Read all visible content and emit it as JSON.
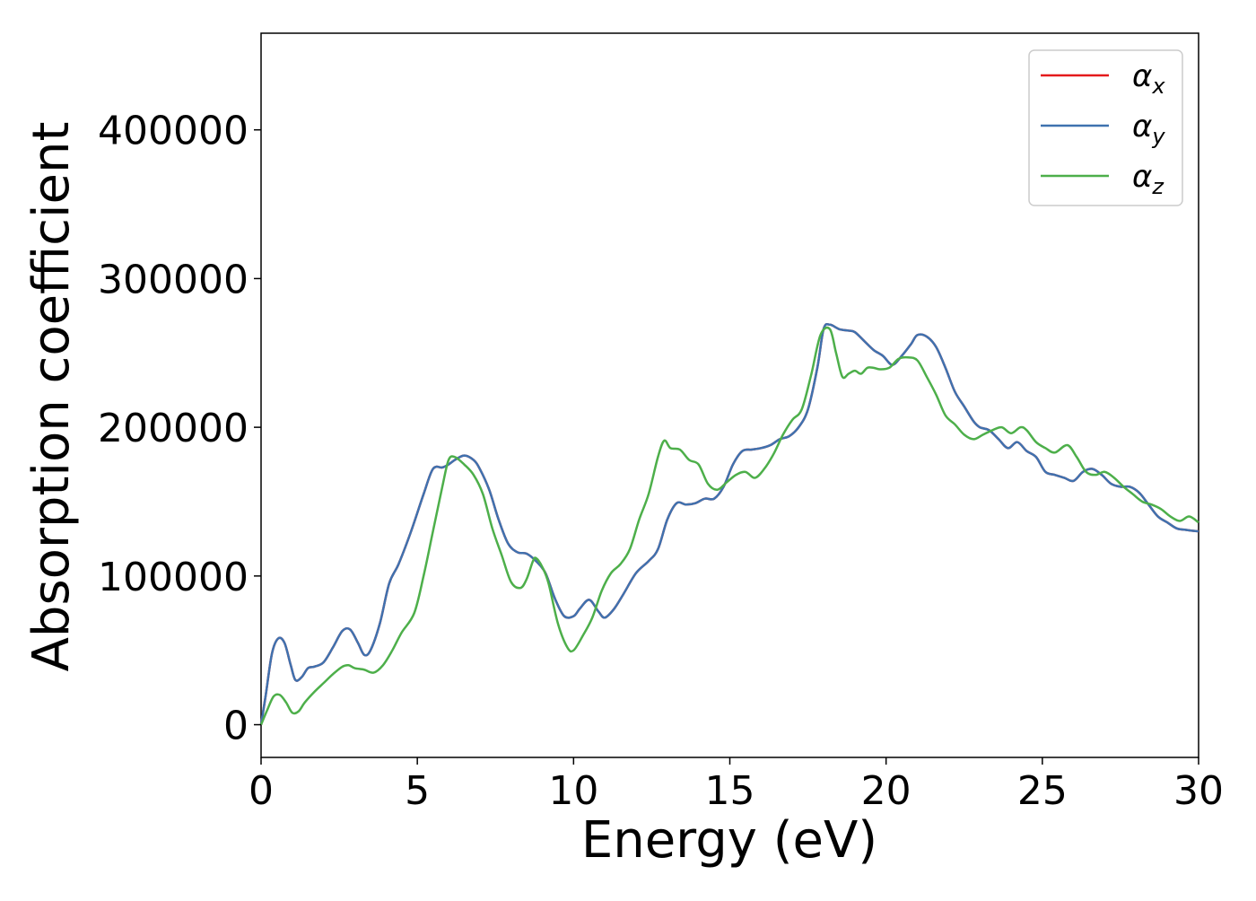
{
  "chart_data": {
    "type": "line",
    "xlabel": "Energy (eV)",
    "ylabel": "Absorption coefficient",
    "xlim": [
      0,
      30
    ],
    "ylim": [
      -22000,
      465000
    ],
    "xticks": [
      0,
      5,
      10,
      15,
      20,
      25,
      30
    ],
    "yticks": [
      0,
      100000,
      200000,
      300000,
      400000
    ],
    "grid": false,
    "legend_position": "top-right",
    "series": [
      {
        "name": "αx",
        "legend_symbol": "α",
        "legend_subscript": "x",
        "color": "#e41a1c",
        "x": [
          0,
          0.15,
          0.35,
          0.55,
          0.75,
          0.95,
          1.1,
          1.3,
          1.5,
          1.7,
          2.0,
          2.3,
          2.6,
          2.85,
          3.1,
          3.3,
          3.5,
          3.8,
          4.1,
          4.4,
          4.8,
          5.2,
          5.5,
          5.8,
          6.0,
          6.2,
          6.5,
          6.8,
          7.0,
          7.3,
          7.6,
          7.9,
          8.2,
          8.5,
          8.8,
          9.1,
          9.4,
          9.7,
          10.0,
          10.2,
          10.5,
          10.8,
          11.0,
          11.3,
          11.6,
          12.0,
          12.4,
          12.7,
          13.0,
          13.3,
          13.6,
          13.9,
          14.2,
          14.5,
          14.8,
          15.1,
          15.4,
          15.7,
          16.0,
          16.3,
          16.6,
          16.9,
          17.2,
          17.5,
          17.8,
          18.0,
          18.2,
          18.5,
          18.8,
          19.0,
          19.3,
          19.6,
          19.9,
          20.2,
          20.5,
          20.8,
          21.0,
          21.3,
          21.6,
          21.9,
          22.2,
          22.5,
          22.8,
          23.0,
          23.3,
          23.6,
          23.9,
          24.2,
          24.5,
          24.8,
          25.1,
          25.4,
          25.7,
          26.0,
          26.3,
          26.6,
          26.9,
          27.2,
          27.5,
          27.8,
          28.1,
          28.4,
          28.7,
          29.0,
          29.3,
          29.6,
          30.0
        ],
        "y": [
          0,
          20000,
          48000,
          58000,
          55000,
          40000,
          30000,
          32000,
          38000,
          39000,
          42000,
          52000,
          63000,
          64000,
          55000,
          47000,
          50000,
          68000,
          95000,
          108000,
          130000,
          155000,
          172000,
          173000,
          175000,
          178000,
          181000,
          178000,
          172000,
          158000,
          138000,
          122000,
          116000,
          115000,
          110000,
          102000,
          85000,
          73000,
          73000,
          78000,
          84000,
          76000,
          72000,
          78000,
          88000,
          102000,
          110000,
          118000,
          138000,
          149000,
          148000,
          149000,
          152000,
          152000,
          160000,
          175000,
          184000,
          185000,
          186000,
          188000,
          192000,
          194000,
          200000,
          212000,
          240000,
          266000,
          269000,
          266000,
          265000,
          264000,
          258000,
          252000,
          248000,
          242000,
          248000,
          256000,
          262000,
          261000,
          254000,
          240000,
          224000,
          214000,
          204000,
          200000,
          198000,
          192000,
          186000,
          190000,
          184000,
          180000,
          170000,
          168000,
          166000,
          164000,
          170000,
          172000,
          168000,
          162000,
          160000,
          160000,
          156000,
          148000,
          140000,
          136000,
          132000,
          131000,
          130000
        ]
      },
      {
        "name": "αy",
        "legend_symbol": "α",
        "legend_subscript": "y",
        "color": "#3f72af",
        "x": [
          0,
          0.15,
          0.35,
          0.55,
          0.75,
          0.95,
          1.1,
          1.3,
          1.5,
          1.7,
          2.0,
          2.3,
          2.6,
          2.85,
          3.1,
          3.3,
          3.5,
          3.8,
          4.1,
          4.4,
          4.8,
          5.2,
          5.5,
          5.8,
          6.0,
          6.2,
          6.5,
          6.8,
          7.0,
          7.3,
          7.6,
          7.9,
          8.2,
          8.5,
          8.8,
          9.1,
          9.4,
          9.7,
          10.0,
          10.2,
          10.5,
          10.8,
          11.0,
          11.3,
          11.6,
          12.0,
          12.4,
          12.7,
          13.0,
          13.3,
          13.6,
          13.9,
          14.2,
          14.5,
          14.8,
          15.1,
          15.4,
          15.7,
          16.0,
          16.3,
          16.6,
          16.9,
          17.2,
          17.5,
          17.8,
          18.0,
          18.2,
          18.5,
          18.8,
          19.0,
          19.3,
          19.6,
          19.9,
          20.2,
          20.5,
          20.8,
          21.0,
          21.3,
          21.6,
          21.9,
          22.2,
          22.5,
          22.8,
          23.0,
          23.3,
          23.6,
          23.9,
          24.2,
          24.5,
          24.8,
          25.1,
          25.4,
          25.7,
          26.0,
          26.3,
          26.6,
          26.9,
          27.2,
          27.5,
          27.8,
          28.1,
          28.4,
          28.7,
          29.0,
          29.3,
          29.6,
          30.0
        ],
        "y": [
          0,
          20000,
          48000,
          58000,
          55000,
          40000,
          30000,
          32000,
          38000,
          39000,
          42000,
          52000,
          63000,
          64000,
          55000,
          47000,
          50000,
          68000,
          95000,
          108000,
          130000,
          155000,
          172000,
          173000,
          175000,
          178000,
          181000,
          178000,
          172000,
          158000,
          138000,
          122000,
          116000,
          115000,
          110000,
          102000,
          85000,
          73000,
          73000,
          78000,
          84000,
          76000,
          72000,
          78000,
          88000,
          102000,
          110000,
          118000,
          138000,
          149000,
          148000,
          149000,
          152000,
          152000,
          160000,
          175000,
          184000,
          185000,
          186000,
          188000,
          192000,
          194000,
          200000,
          212000,
          240000,
          266000,
          269000,
          266000,
          265000,
          264000,
          258000,
          252000,
          248000,
          242000,
          248000,
          256000,
          262000,
          261000,
          254000,
          240000,
          224000,
          214000,
          204000,
          200000,
          198000,
          192000,
          186000,
          190000,
          184000,
          180000,
          170000,
          168000,
          166000,
          164000,
          170000,
          172000,
          168000,
          162000,
          160000,
          160000,
          156000,
          148000,
          140000,
          136000,
          132000,
          131000,
          130000
        ]
      },
      {
        "name": "αz",
        "legend_symbol": "α",
        "legend_subscript": "z",
        "color": "#4daf4a",
        "x": [
          0,
          0.2,
          0.4,
          0.6,
          0.8,
          1.0,
          1.2,
          1.4,
          1.7,
          2.0,
          2.3,
          2.6,
          2.8,
          3.0,
          3.3,
          3.6,
          3.9,
          4.2,
          4.5,
          4.9,
          5.2,
          5.5,
          5.8,
          6.0,
          6.2,
          6.5,
          6.8,
          7.1,
          7.4,
          7.7,
          8.0,
          8.3,
          8.5,
          8.7,
          8.8,
          9.0,
          9.2,
          9.5,
          9.8,
          10.0,
          10.3,
          10.6,
          10.9,
          11.2,
          11.5,
          11.8,
          12.1,
          12.4,
          12.7,
          12.9,
          13.1,
          13.4,
          13.7,
          14.0,
          14.3,
          14.6,
          14.9,
          15.2,
          15.5,
          15.8,
          16.1,
          16.4,
          16.7,
          17.0,
          17.3,
          17.6,
          17.9,
          18.2,
          18.4,
          18.6,
          18.8,
          19.0,
          19.2,
          19.4,
          19.6,
          19.8,
          20.1,
          20.4,
          20.7,
          21.0,
          21.3,
          21.6,
          21.9,
          22.2,
          22.5,
          22.8,
          23.1,
          23.4,
          23.7,
          24.0,
          24.3,
          24.5,
          24.8,
          25.1,
          25.4,
          25.8,
          26.1,
          26.4,
          26.7,
          27.0,
          27.3,
          27.6,
          27.9,
          28.2,
          28.5,
          28.8,
          29.1,
          29.4,
          29.7,
          30.0
        ],
        "y": [
          0,
          10000,
          19000,
          20000,
          15000,
          8000,
          9000,
          15000,
          22000,
          28000,
          34000,
          39000,
          40000,
          38000,
          37000,
          35000,
          40000,
          50000,
          62000,
          75000,
          100000,
          130000,
          160000,
          178000,
          180000,
          175000,
          168000,
          155000,
          132000,
          114000,
          96000,
          92000,
          98000,
          110000,
          112000,
          106000,
          95000,
          68000,
          52000,
          50000,
          60000,
          72000,
          90000,
          102000,
          108000,
          118000,
          138000,
          155000,
          180000,
          191000,
          186000,
          185000,
          178000,
          175000,
          162000,
          158000,
          163000,
          168000,
          170000,
          166000,
          172000,
          182000,
          195000,
          205000,
          212000,
          235000,
          262000,
          266000,
          250000,
          234000,
          236000,
          238000,
          236000,
          240000,
          240000,
          239000,
          240000,
          246000,
          247000,
          245000,
          234000,
          222000,
          208000,
          202000,
          195000,
          192000,
          195000,
          198000,
          200000,
          196000,
          200000,
          198000,
          190000,
          186000,
          183000,
          188000,
          180000,
          170000,
          168000,
          170000,
          166000,
          160000,
          155000,
          150000,
          148000,
          145000,
          140000,
          137000,
          140000,
          136000
        ]
      }
    ]
  }
}
